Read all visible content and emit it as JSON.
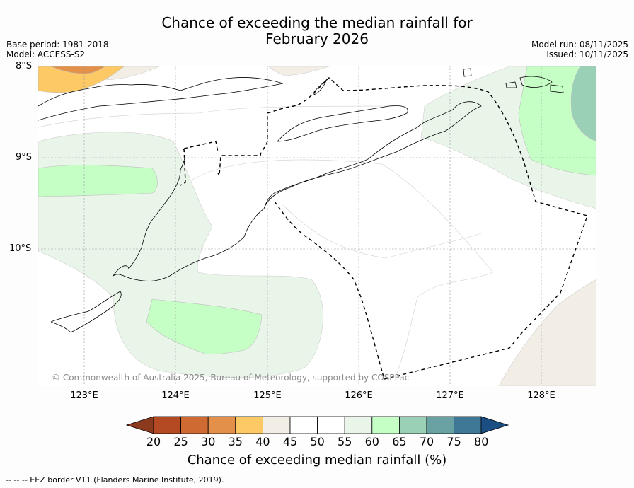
{
  "title_line1": "Chance of exceeding the median rainfall for",
  "title_line2": "February 2026",
  "meta_left": {
    "base_period": "Base period: 1981-2018",
    "model": "Model: ACCESS-S2"
  },
  "meta_right": {
    "model_run": "Model run: 08/11/2025",
    "issued": "Issued: 10/11/2025"
  },
  "lat_labels": [
    "8°S",
    "9°S",
    "10°S"
  ],
  "lon_labels": [
    "123°E",
    "124°E",
    "125°E",
    "126°E",
    "127°E",
    "128°E"
  ],
  "copyright": "© Commonwealth of Australia 2025, Bureau of Meteorology, supported by COSPPac",
  "colorbar": {
    "title": "Chance of exceeding median rainfall (%)",
    "ticks": [
      "20",
      "25",
      "30",
      "35",
      "40",
      "45",
      "50",
      "55",
      "60",
      "65",
      "70",
      "75",
      "80"
    ],
    "colors": [
      "#8b3a1e",
      "#b34a24",
      "#cf6a32",
      "#e2904a",
      "#fdc965",
      "#f2eee6",
      "#ffffff",
      "#ffffff",
      "#eaf5ea",
      "#c6ffc6",
      "#9ad0b6",
      "#6aa2a4",
      "#3f7796",
      "#1b4e82"
    ]
  },
  "footnote": "--  --  -- EEZ border V11 (Flanders Marine Institute, 2019)."
}
